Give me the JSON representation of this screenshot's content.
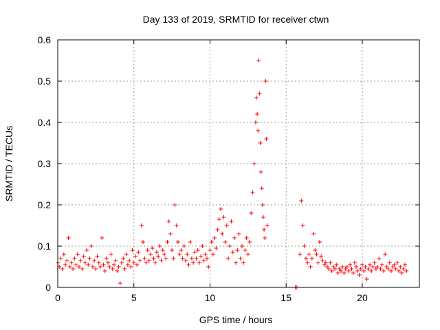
{
  "chart_data": {
    "type": "scatter",
    "title": "Day 133 of 2019, SRMTID for receiver ctwn",
    "xlabel": "GPS time / hours",
    "ylabel": "SRMTID / TECUs",
    "xlim": [
      0,
      23.75
    ],
    "ylim": [
      0,
      0.6
    ],
    "xticks": [
      0,
      5,
      10,
      15,
      20
    ],
    "yticks": [
      0,
      0.1,
      0.2,
      0.3,
      0.4,
      0.5,
      0.6
    ],
    "xtick_labels": [
      "0",
      "5",
      "10",
      "15",
      "20"
    ],
    "ytick_labels": [
      "0",
      "0.1",
      "0.2",
      "0.3",
      "0.4",
      "0.5",
      "0.6"
    ],
    "grid": true,
    "marker": "+",
    "color": "#ff0000",
    "series": [
      {
        "name": "SRMTID",
        "points": [
          [
            0.0,
            0.06
          ],
          [
            0.1,
            0.05
          ],
          [
            0.2,
            0.07
          ],
          [
            0.3,
            0.045
          ],
          [
            0.4,
            0.08
          ],
          [
            0.5,
            0.055
          ],
          [
            0.6,
            0.065
          ],
          [
            0.7,
            0.12
          ],
          [
            0.8,
            0.05
          ],
          [
            0.9,
            0.06
          ],
          [
            1.0,
            0.045
          ],
          [
            1.1,
            0.07
          ],
          [
            1.2,
            0.055
          ],
          [
            1.3,
            0.08
          ],
          [
            1.4,
            0.05
          ],
          [
            1.5,
            0.065
          ],
          [
            1.6,
            0.045
          ],
          [
            1.7,
            0.075
          ],
          [
            1.8,
            0.06
          ],
          [
            1.9,
            0.09
          ],
          [
            2.0,
            0.055
          ],
          [
            2.1,
            0.07
          ],
          [
            2.2,
            0.1
          ],
          [
            2.3,
            0.05
          ],
          [
            2.4,
            0.065
          ],
          [
            2.5,
            0.045
          ],
          [
            2.6,
            0.075
          ],
          [
            2.7,
            0.06
          ],
          [
            2.8,
            0.05
          ],
          [
            2.9,
            0.12
          ],
          [
            3.0,
            0.055
          ],
          [
            3.1,
            0.04
          ],
          [
            3.2,
            0.07
          ],
          [
            3.3,
            0.06
          ],
          [
            3.4,
            0.05
          ],
          [
            3.5,
            0.08
          ],
          [
            3.6,
            0.045
          ],
          [
            3.7,
            0.055
          ],
          [
            3.8,
            0.065
          ],
          [
            3.9,
            0.04
          ],
          [
            4.0,
            0.05
          ],
          [
            4.1,
            0.01
          ],
          [
            4.2,
            0.06
          ],
          [
            4.3,
            0.07
          ],
          [
            4.4,
            0.045
          ],
          [
            4.5,
            0.08
          ],
          [
            4.6,
            0.055
          ],
          [
            4.7,
            0.065
          ],
          [
            4.8,
            0.05
          ],
          [
            4.9,
            0.09
          ],
          [
            5.0,
            0.06
          ],
          [
            5.1,
            0.075
          ],
          [
            5.2,
            0.055
          ],
          [
            5.3,
            0.085
          ],
          [
            5.4,
            0.065
          ],
          [
            5.5,
            0.15
          ],
          [
            5.6,
            0.11
          ],
          [
            5.7,
            0.07
          ],
          [
            5.8,
            0.06
          ],
          [
            5.9,
            0.09
          ],
          [
            6.0,
            0.065
          ],
          [
            6.1,
            0.08
          ],
          [
            6.2,
            0.095
          ],
          [
            6.3,
            0.07
          ],
          [
            6.4,
            0.06
          ],
          [
            6.5,
            0.085
          ],
          [
            6.6,
            0.075
          ],
          [
            6.7,
            0.1
          ],
          [
            6.8,
            0.065
          ],
          [
            6.9,
            0.09
          ],
          [
            7.0,
            0.08
          ],
          [
            7.1,
            0.07
          ],
          [
            7.2,
            0.11
          ],
          [
            7.3,
            0.16
          ],
          [
            7.4,
            0.13
          ],
          [
            7.5,
            0.09
          ],
          [
            7.6,
            0.07
          ],
          [
            7.7,
            0.2
          ],
          [
            7.8,
            0.15
          ],
          [
            7.9,
            0.11
          ],
          [
            8.0,
            0.08
          ],
          [
            8.1,
            0.09
          ],
          [
            8.2,
            0.07
          ],
          [
            8.3,
            0.1
          ],
          [
            8.4,
            0.065
          ],
          [
            8.5,
            0.08
          ],
          [
            8.6,
            0.055
          ],
          [
            8.7,
            0.11
          ],
          [
            8.8,
            0.07
          ],
          [
            8.9,
            0.06
          ],
          [
            9.0,
            0.085
          ],
          [
            9.1,
            0.07
          ],
          [
            9.2,
            0.09
          ],
          [
            9.3,
            0.06
          ],
          [
            9.4,
            0.075
          ],
          [
            9.5,
            0.1
          ],
          [
            9.6,
            0.065
          ],
          [
            9.7,
            0.08
          ],
          [
            9.8,
            0.07
          ],
          [
            9.9,
            0.05
          ],
          [
            10.0,
            0.09
          ],
          [
            10.1,
            0.11
          ],
          [
            10.2,
            0.08
          ],
          [
            10.3,
            0.12
          ],
          [
            10.4,
            0.095
          ],
          [
            10.5,
            0.14
          ],
          [
            10.6,
            0.165
          ],
          [
            10.7,
            0.19
          ],
          [
            10.8,
            0.13
          ],
          [
            10.9,
            0.17
          ],
          [
            11.0,
            0.11
          ],
          [
            11.1,
            0.15
          ],
          [
            11.2,
            0.07
          ],
          [
            11.3,
            0.1
          ],
          [
            11.4,
            0.16
          ],
          [
            11.5,
            0.085
          ],
          [
            11.6,
            0.12
          ],
          [
            11.7,
            0.06
          ],
          [
            11.8,
            0.09
          ],
          [
            11.9,
            0.13
          ],
          [
            12.0,
            0.07
          ],
          [
            12.1,
            0.1
          ],
          [
            12.2,
            0.06
          ],
          [
            12.3,
            0.09
          ],
          [
            12.4,
            0.12
          ],
          [
            12.5,
            0.08
          ],
          [
            12.6,
            0.11
          ],
          [
            12.7,
            0.18
          ],
          [
            12.8,
            0.23
          ],
          [
            12.9,
            0.3
          ],
          [
            13.0,
            0.4
          ],
          [
            13.05,
            0.46
          ],
          [
            13.1,
            0.42
          ],
          [
            13.15,
            0.38
          ],
          [
            13.2,
            0.55
          ],
          [
            13.25,
            0.47
          ],
          [
            13.3,
            0.35
          ],
          [
            13.35,
            0.28
          ],
          [
            13.4,
            0.24
          ],
          [
            13.45,
            0.2
          ],
          [
            13.5,
            0.17
          ],
          [
            13.55,
            0.14
          ],
          [
            13.6,
            0.12
          ],
          [
            13.65,
            0.5
          ],
          [
            13.7,
            0.36
          ],
          [
            13.75,
            0.15
          ],
          [
            15.6,
            0.0
          ],
          [
            15.7,
            0.0
          ],
          [
            15.9,
            0.08
          ],
          [
            16.0,
            0.21
          ],
          [
            16.1,
            0.15
          ],
          [
            16.2,
            0.1
          ],
          [
            16.3,
            0.07
          ],
          [
            16.4,
            0.06
          ],
          [
            16.5,
            0.08
          ],
          [
            16.6,
            0.05
          ],
          [
            16.7,
            0.07
          ],
          [
            16.8,
            0.13
          ],
          [
            16.9,
            0.09
          ],
          [
            17.0,
            0.08
          ],
          [
            17.1,
            0.06
          ],
          [
            17.2,
            0.11
          ],
          [
            17.3,
            0.075
          ],
          [
            17.4,
            0.065
          ],
          [
            17.5,
            0.055
          ],
          [
            17.6,
            0.06
          ],
          [
            17.7,
            0.05
          ],
          [
            17.8,
            0.045
          ],
          [
            17.9,
            0.06
          ],
          [
            18.0,
            0.04
          ],
          [
            18.1,
            0.05
          ],
          [
            18.2,
            0.045
          ],
          [
            18.3,
            0.055
          ],
          [
            18.4,
            0.035
          ],
          [
            18.5,
            0.045
          ],
          [
            18.6,
            0.04
          ],
          [
            18.7,
            0.05
          ],
          [
            18.8,
            0.035
          ],
          [
            18.9,
            0.045
          ],
          [
            19.0,
            0.05
          ],
          [
            19.1,
            0.04
          ],
          [
            19.2,
            0.055
          ],
          [
            19.3,
            0.045
          ],
          [
            19.4,
            0.035
          ],
          [
            19.5,
            0.06
          ],
          [
            19.6,
            0.05
          ],
          [
            19.7,
            0.04
          ],
          [
            19.8,
            0.03
          ],
          [
            19.9,
            0.045
          ],
          [
            20.0,
            0.055
          ],
          [
            20.1,
            0.04
          ],
          [
            20.2,
            0.05
          ],
          [
            20.3,
            0.02
          ],
          [
            20.4,
            0.045
          ],
          [
            20.5,
            0.055
          ],
          [
            20.6,
            0.04
          ],
          [
            20.7,
            0.05
          ],
          [
            20.8,
            0.06
          ],
          [
            20.9,
            0.045
          ],
          [
            21.0,
            0.05
          ],
          [
            21.1,
            0.07
          ],
          [
            21.2,
            0.045
          ],
          [
            21.3,
            0.055
          ],
          [
            21.4,
            0.04
          ],
          [
            21.5,
            0.08
          ],
          [
            21.6,
            0.05
          ],
          [
            21.7,
            0.045
          ],
          [
            21.8,
            0.06
          ],
          [
            21.9,
            0.04
          ],
          [
            22.0,
            0.05
          ],
          [
            22.1,
            0.055
          ],
          [
            22.2,
            0.045
          ],
          [
            22.3,
            0.06
          ],
          [
            22.4,
            0.04
          ],
          [
            22.5,
            0.05
          ],
          [
            22.6,
            0.035
          ],
          [
            22.7,
            0.045
          ],
          [
            22.8,
            0.055
          ],
          [
            22.9,
            0.04
          ]
        ]
      }
    ]
  }
}
